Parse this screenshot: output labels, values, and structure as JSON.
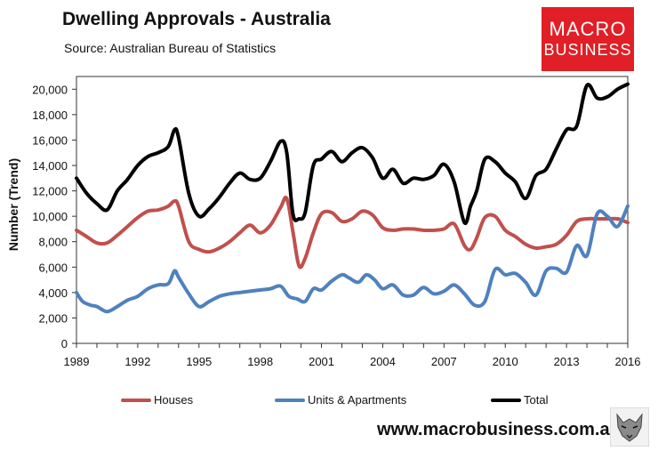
{
  "header": {
    "title": "Dwelling Approvals - Australia",
    "source": "Source:   Australian Bureau of Statistics"
  },
  "logo": {
    "line1": "MACRO",
    "line2": "BUSINESS"
  },
  "footer": {
    "website": "www.macrobusiness.com.au"
  },
  "icons": {
    "logo_icon": "wolf-head-icon"
  },
  "colors": {
    "houses": "#c0504d",
    "units": "#4f81bd",
    "total": "#000000",
    "logo_bg": "#e01f26"
  },
  "chart_data": {
    "type": "line",
    "title": "Dwelling Approvals - Australia",
    "ylabel": "Number (Trend)",
    "xlabel": "",
    "ylim": [
      0,
      21000
    ],
    "xlim": [
      1989,
      2016
    ],
    "yticks": [
      0,
      2000,
      4000,
      6000,
      8000,
      10000,
      12000,
      14000,
      16000,
      18000,
      20000
    ],
    "ytick_labels": [
      "0",
      "2,000",
      "4,000",
      "6,000",
      "8,000",
      "10,000",
      "12,000",
      "14,000",
      "16,000",
      "18,000",
      "20,000"
    ],
    "xticks": [
      "1989",
      "1992",
      "1995",
      "1998",
      "2001",
      "2004",
      "2007",
      "2010",
      "2013",
      "2016"
    ],
    "grid": false,
    "legend_position": "bottom",
    "series": [
      {
        "name": "Houses",
        "color": "#c0504d",
        "x": [
          1989.0,
          1989.5,
          1990.0,
          1990.5,
          1991.0,
          1991.5,
          1992.0,
          1992.5,
          1993.0,
          1993.5,
          1993.8,
          1994.0,
          1994.5,
          1995.0,
          1995.5,
          1996.0,
          1996.5,
          1997.0,
          1997.5,
          1998.0,
          1998.5,
          1999.0,
          1999.3,
          1999.6,
          1999.9,
          2000.2,
          2000.6,
          2001.0,
          2001.5,
          2002.0,
          2002.5,
          2003.0,
          2003.5,
          2004.0,
          2004.5,
          2005.0,
          2005.5,
          2006.0,
          2006.5,
          2007.0,
          2007.5,
          2008.0,
          2008.3,
          2008.6,
          2009.0,
          2009.5,
          2010.0,
          2010.5,
          2011.0,
          2011.5,
          2012.0,
          2012.5,
          2013.0,
          2013.5,
          2014.0,
          2014.5,
          2015.0,
          2015.5,
          2016.0
        ],
        "y": [
          8900,
          8400,
          7900,
          7900,
          8500,
          9200,
          9900,
          10400,
          10500,
          10800,
          11200,
          10800,
          8000,
          7400,
          7200,
          7500,
          8000,
          8700,
          9300,
          8700,
          9300,
          10700,
          11400,
          8800,
          6100,
          6700,
          8700,
          10200,
          10300,
          9600,
          9800,
          10400,
          10100,
          9100,
          8900,
          9000,
          9000,
          8900,
          8900,
          9000,
          9400,
          7700,
          7400,
          8300,
          9900,
          10000,
          8900,
          8400,
          7800,
          7500,
          7600,
          7800,
          8500,
          9600,
          9800,
          9800,
          9800,
          9800,
          9500
        ]
      },
      {
        "name": "Units & Apartments",
        "color": "#4f81bd",
        "x": [
          1989.0,
          1989.3,
          1989.7,
          1990.0,
          1990.5,
          1991.0,
          1991.5,
          1992.0,
          1992.5,
          1993.0,
          1993.5,
          1993.8,
          1994.0,
          1994.5,
          1995.0,
          1995.5,
          1996.0,
          1996.5,
          1997.0,
          1997.5,
          1998.0,
          1998.5,
          1999.0,
          1999.4,
          1999.8,
          2000.2,
          2000.6,
          2001.0,
          2001.5,
          2002.0,
          2002.3,
          2002.8,
          2003.2,
          2003.6,
          2004.0,
          2004.5,
          2005.0,
          2005.5,
          2006.0,
          2006.5,
          2007.0,
          2007.5,
          2008.0,
          2008.5,
          2009.0,
          2009.5,
          2010.0,
          2010.5,
          2011.0,
          2011.5,
          2012.0,
          2012.5,
          2013.0,
          2013.5,
          2014.0,
          2014.5,
          2015.0,
          2015.5,
          2016.0
        ],
        "y": [
          4000,
          3300,
          3000,
          2900,
          2500,
          2900,
          3400,
          3700,
          4300,
          4600,
          4700,
          5700,
          5200,
          3900,
          2900,
          3300,
          3700,
          3900,
          4000,
          4100,
          4200,
          4300,
          4500,
          3700,
          3500,
          3300,
          4300,
          4200,
          4900,
          5400,
          5200,
          4800,
          5400,
          5000,
          4300,
          4600,
          3800,
          3800,
          4400,
          3900,
          4100,
          4600,
          3900,
          3000,
          3300,
          5800,
          5400,
          5500,
          4800,
          3800,
          5700,
          5900,
          5600,
          7700,
          6900,
          10200,
          10000,
          9200,
          10800
        ]
      },
      {
        "name": "Total",
        "color": "#000000",
        "x": [
          1989.0,
          1989.5,
          1990.0,
          1990.5,
          1991.0,
          1991.5,
          1992.0,
          1992.5,
          1993.0,
          1993.5,
          1993.8,
          1994.0,
          1994.5,
          1995.0,
          1995.5,
          1996.0,
          1996.5,
          1997.0,
          1997.5,
          1998.0,
          1998.5,
          1999.0,
          1999.3,
          1999.6,
          1999.9,
          2000.2,
          2000.6,
          2001.0,
          2001.5,
          2002.0,
          2002.5,
          2003.0,
          2003.5,
          2004.0,
          2004.5,
          2005.0,
          2005.5,
          2006.0,
          2006.5,
          2007.0,
          2007.5,
          2008.0,
          2008.3,
          2008.6,
          2009.0,
          2009.5,
          2010.0,
          2010.5,
          2011.0,
          2011.5,
          2012.0,
          2012.5,
          2013.0,
          2013.5,
          2014.0,
          2014.5,
          2015.0,
          2015.5,
          2016.0
        ],
        "y": [
          13000,
          11800,
          11000,
          10500,
          12000,
          12900,
          14000,
          14700,
          15000,
          15500,
          16800,
          16200,
          11800,
          10000,
          10600,
          11500,
          12600,
          13400,
          12900,
          13000,
          14300,
          15900,
          15000,
          10200,
          9800,
          10300,
          14000,
          14500,
          15100,
          14300,
          15000,
          15400,
          14600,
          13000,
          13700,
          12600,
          13000,
          12900,
          13200,
          14100,
          12700,
          9500,
          10800,
          12000,
          14500,
          14300,
          13400,
          12700,
          11400,
          13200,
          13700,
          15300,
          16800,
          17100,
          20300,
          19300,
          19400,
          20000,
          20400
        ]
      }
    ]
  }
}
